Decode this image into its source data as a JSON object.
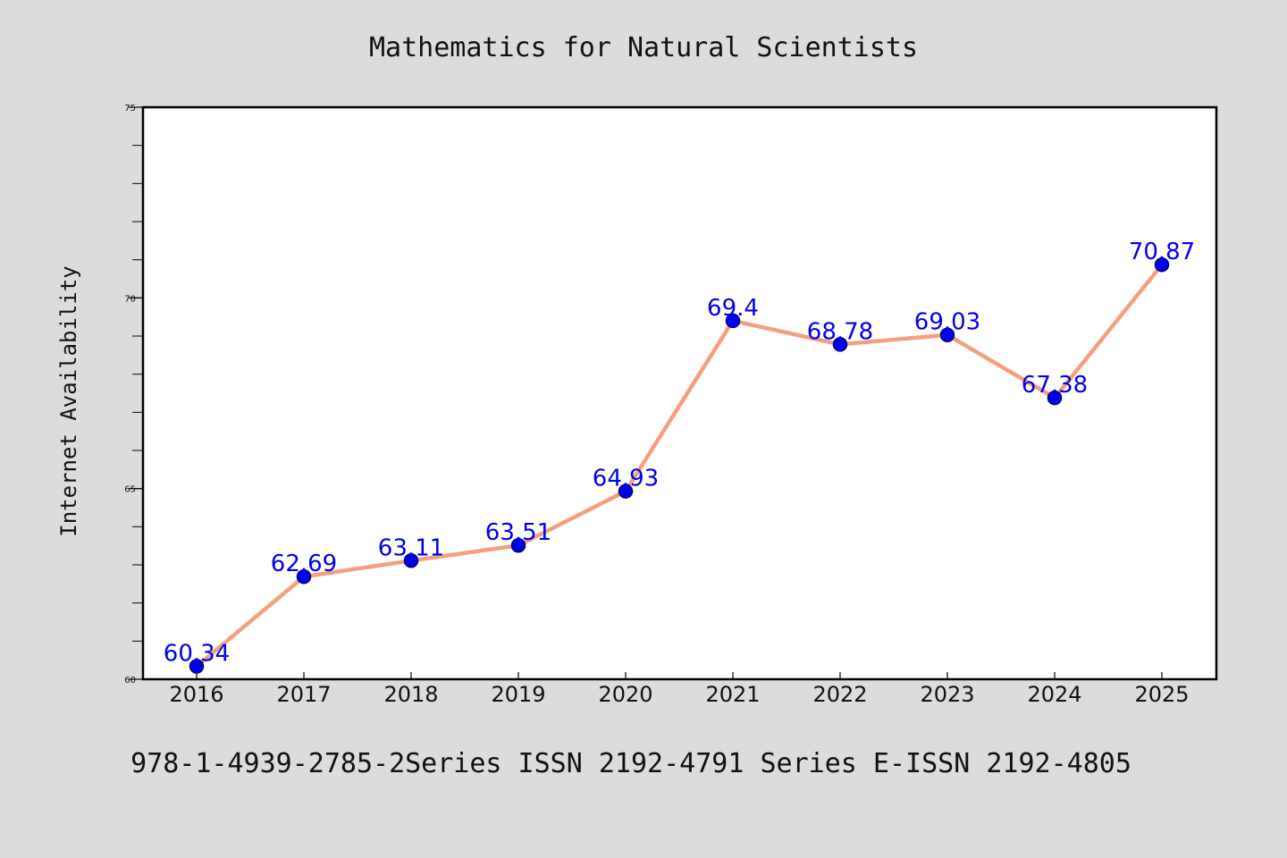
{
  "colors": {
    "background": "#dcdcdc",
    "plot_background": "#ffffff",
    "axis": "#000000",
    "line": "#f4a07e",
    "marker": "#0000ee",
    "marker_edge": "#000080",
    "data_label": "#0000ee"
  },
  "footer": {
    "text": "978-1-4939-2785-2Series ISSN 2192-4791 Series E-ISSN 2192-4805"
  },
  "chart_data": {
    "type": "line",
    "title": "Mathematics for Natural Scientists",
    "xlabel": "",
    "ylabel": "Internet Availability",
    "categories": [
      "2016",
      "2017",
      "2018",
      "2019",
      "2020",
      "2021",
      "2022",
      "2023",
      "2024",
      "2025"
    ],
    "series": [
      {
        "values": [
          60.34,
          62.69,
          63.11,
          63.51,
          64.93,
          69.4,
          68.78,
          69.03,
          67.38,
          70.87
        ],
        "data_labels": [
          "60.34",
          "62.69",
          "63.11",
          "63.51",
          "64.93",
          "69.4",
          "68.78",
          "69.03",
          "67.38",
          "70.87"
        ]
      }
    ],
    "ylim": [
      60,
      75
    ],
    "yticks": [
      60,
      65,
      70,
      75
    ],
    "ytick_labels": [
      "60",
      "65",
      "70",
      "75"
    ],
    "y_minor_step": 1,
    "grid": false,
    "legend": "none"
  }
}
